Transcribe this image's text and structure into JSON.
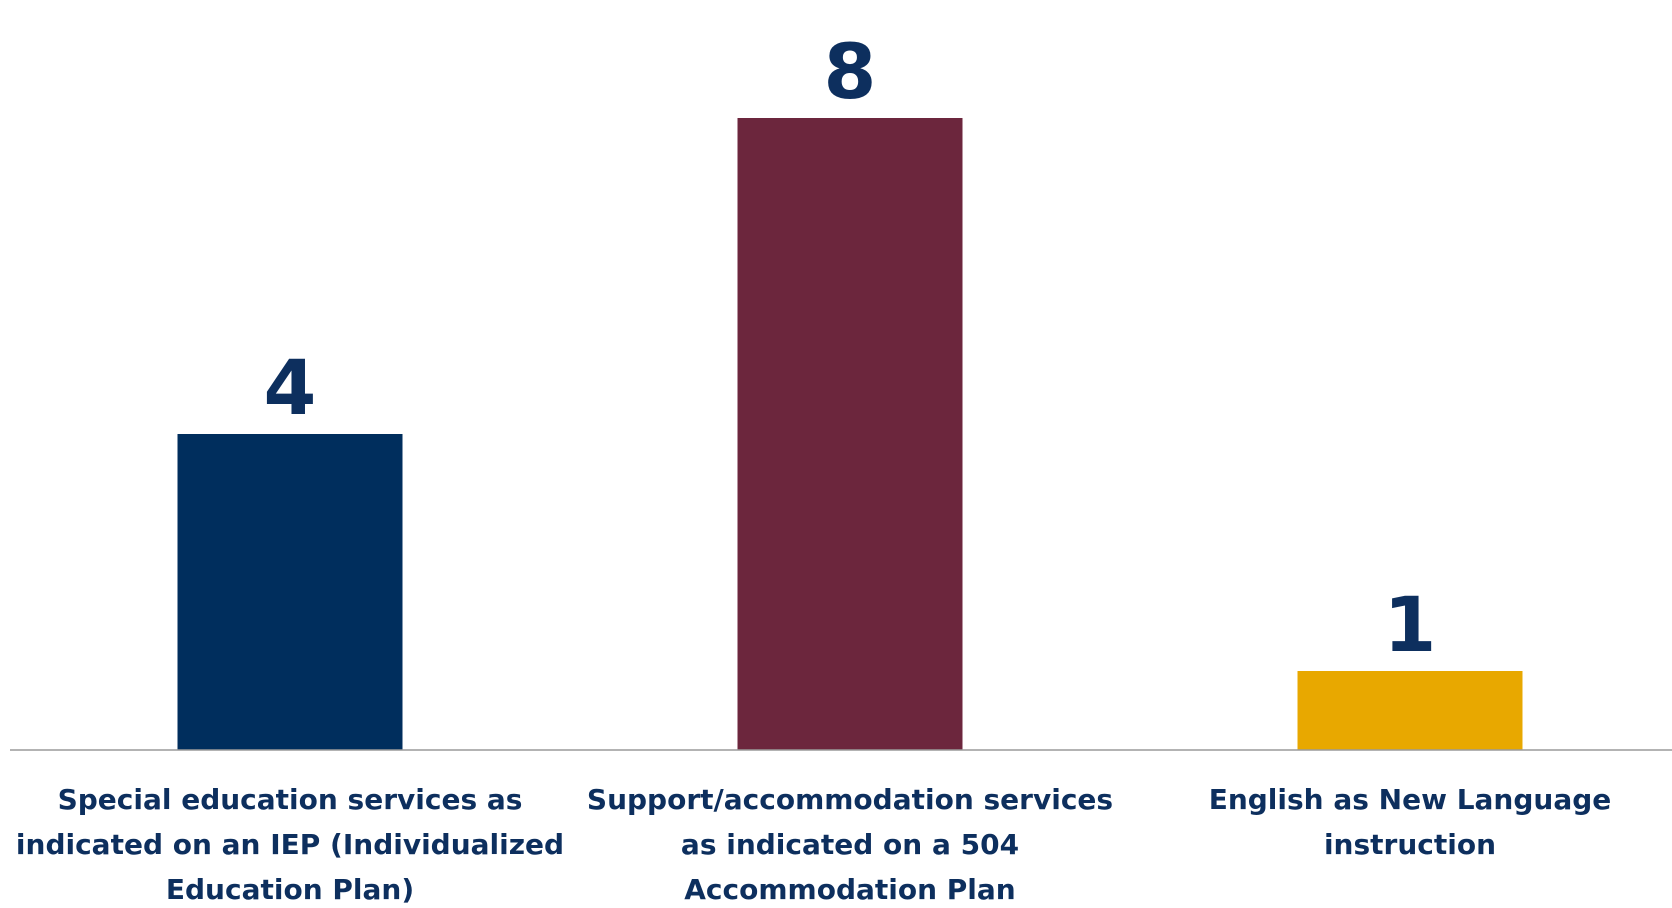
{
  "chart_data": {
    "type": "bar",
    "categories": [
      [
        "Special education services as",
        "indicated on an IEP (Individualized",
        "Education Plan)"
      ],
      [
        "Support/accommodation services",
        "as indicated on a 504",
        "Accommodation Plan"
      ],
      [
        "English as New Language",
        "instruction"
      ]
    ],
    "values": [
      4,
      8,
      1
    ],
    "data_labels": [
      "4",
      "8",
      "1"
    ],
    "colors": [
      "#002e5d",
      "#6c263d",
      "#e8a800"
    ],
    "label_color": "#0d2f5e",
    "axis_color": "#9a9a9a",
    "ylim": [
      0,
      8
    ],
    "grid": false,
    "title": "",
    "xlabel": "",
    "ylabel": ""
  }
}
